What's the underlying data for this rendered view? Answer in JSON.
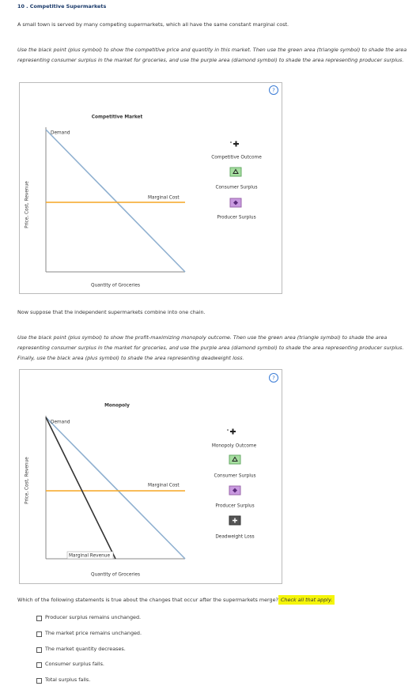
{
  "header": {
    "number": "10 .",
    "title": "Competitive Supermarkets"
  },
  "intro": "A small town is served by many competing supermarkets, which all have the same constant marginal cost.",
  "instructions_1": "Use the black point (plus symbol) to show the competitive price and quantity in this market. Then use the green area (triangle symbol) to shade the area representing consumer surplus in the market for groceries, and use the purple area (diamond symbol) to shade the area representing producer surplus.",
  "graph_1": {
    "help": "?",
    "title": "Competitive Market",
    "y_axis": "Price, Cost, Revenue",
    "x_axis": "Quantity of Groceries",
    "curves": {
      "demand": "Demand",
      "marginal_cost": "Marginal Cost"
    },
    "tools": [
      "Competitive Outcome",
      "Consumer Surplus",
      "Producer Surplus"
    ]
  },
  "transition": "Now suppose that the independent supermarkets combine into one chain.",
  "instructions_2": "Use the black point (plus symbol) to show the profit-maximizing monopoly outcome. Then use the green area (triangle symbol) to shade the area representing consumer surplus in the market for groceries, and use the purple area (diamond symbol) to shade the area representing producer surplus. Finally, use the black area (plus symbol) to shade the area representing deadweight loss.",
  "graph_2": {
    "help": "?",
    "title": "Monopoly",
    "y_axis": "Price, Cost, Revenue",
    "x_axis": "Quantity of Groceries",
    "curves": {
      "demand": "Demand",
      "marginal_cost": "Marginal Cost",
      "marginal_revenue": "Marginal Revenue"
    },
    "tools": [
      "Monopoly Outcome",
      "Consumer Surplus",
      "Producer Surplus",
      "Deadweight Loss"
    ]
  },
  "question": {
    "text": "Which of the following statements is true about the changes that occur after the supermarkets merge?",
    "hint": "Check all that apply.",
    "options": [
      "Producer surplus remains unchanged.",
      "The market price remains unchanged.",
      "The market quantity decreases.",
      "Consumer surplus falls.",
      "Total surplus falls."
    ]
  }
}
